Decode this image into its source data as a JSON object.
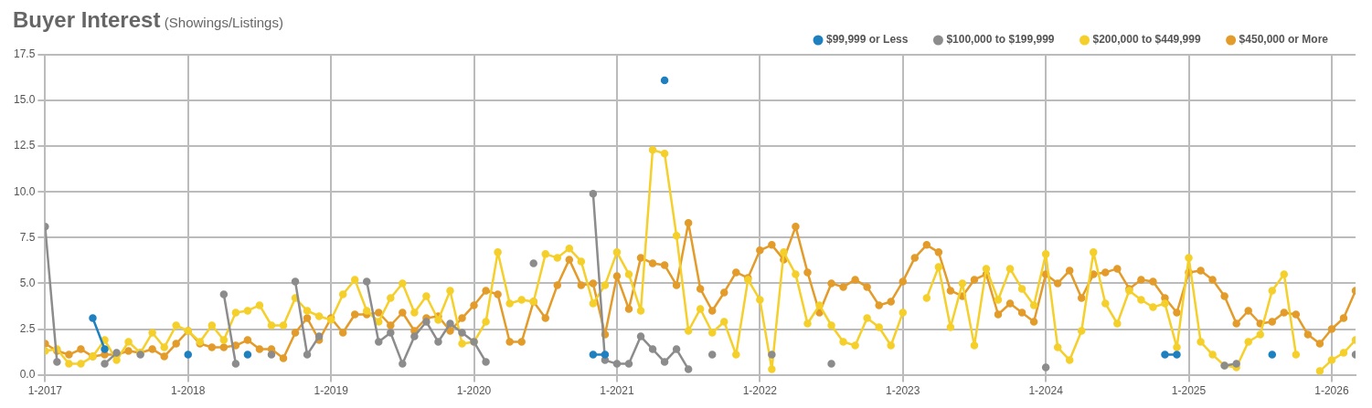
{
  "chart_data": {
    "type": "line",
    "title": "Buyer Interest",
    "subtitle": "(Showings/Listings)",
    "x": [
      "2017-01",
      "2017-02",
      "2017-03",
      "2017-04",
      "2017-05",
      "2017-06",
      "2017-07",
      "2017-08",
      "2017-09",
      "2017-10",
      "2017-11",
      "2017-12",
      "2018-01",
      "2018-02",
      "2018-03",
      "2018-04",
      "2018-05",
      "2018-06",
      "2018-07",
      "2018-08",
      "2018-09",
      "2018-10",
      "2018-11",
      "2018-12",
      "2019-01",
      "2019-02",
      "2019-03",
      "2019-04",
      "2019-05",
      "2019-06",
      "2019-07",
      "2019-08",
      "2019-09",
      "2019-10",
      "2019-11",
      "2019-12",
      "2020-01",
      "2020-02",
      "2020-03",
      "2020-04",
      "2020-05",
      "2020-06",
      "2020-07",
      "2020-08",
      "2020-09",
      "2020-10",
      "2020-11",
      "2020-12",
      "2021-01",
      "2021-02",
      "2021-03",
      "2021-04",
      "2021-05",
      "2021-06",
      "2021-07",
      "2021-08",
      "2021-09",
      "2021-10",
      "2021-11",
      "2021-12",
      "2022-01",
      "2022-02",
      "2022-03",
      "2022-04",
      "2022-05",
      "2022-06",
      "2022-07",
      "2022-08",
      "2022-09",
      "2022-10",
      "2022-11",
      "2022-12",
      "2023-01",
      "2023-02",
      "2023-03",
      "2023-04",
      "2023-05",
      "2023-06",
      "2023-07",
      "2023-08",
      "2023-09",
      "2023-10",
      "2023-11",
      "2023-12",
      "2024-01",
      "2024-02",
      "2024-03",
      "2024-04",
      "2024-05",
      "2024-06",
      "2024-07",
      "2024-08",
      "2024-09",
      "2024-10",
      "2024-11",
      "2024-12",
      "2025-01",
      "2025-02",
      "2025-03",
      "2025-04",
      "2025-05",
      "2025-06",
      "2025-07",
      "2025-08",
      "2025-09",
      "2025-10",
      "2025-11",
      "2025-12",
      "2026-01",
      "2026-02",
      "2026-03"
    ],
    "series": [
      {
        "name": "$99,999 or Less",
        "color": "#1f80c0",
        "values": [
          null,
          null,
          null,
          null,
          3.1,
          1.4,
          null,
          null,
          null,
          null,
          null,
          null,
          1.1,
          null,
          null,
          null,
          null,
          1.1,
          null,
          null,
          null,
          null,
          null,
          null,
          null,
          null,
          null,
          null,
          null,
          null,
          null,
          null,
          null,
          null,
          null,
          null,
          null,
          null,
          null,
          null,
          null,
          null,
          null,
          null,
          null,
          null,
          1.1,
          1.1,
          null,
          null,
          null,
          null,
          16.1,
          null,
          null,
          null,
          null,
          null,
          null,
          null,
          null,
          null,
          null,
          null,
          null,
          null,
          null,
          null,
          null,
          null,
          null,
          null,
          null,
          null,
          null,
          null,
          null,
          null,
          null,
          null,
          null,
          null,
          null,
          null,
          null,
          null,
          null,
          null,
          null,
          null,
          null,
          null,
          null,
          null,
          1.1,
          1.1,
          null,
          null,
          null,
          null,
          null,
          null,
          null,
          1.1,
          null,
          null,
          null,
          null,
          null,
          null,
          null
        ]
      },
      {
        "name": "$100,000 to $199,999",
        "color": "#8c8c8c",
        "values": [
          8.1,
          0.7,
          null,
          null,
          null,
          0.6,
          1.2,
          null,
          1.1,
          null,
          null,
          null,
          null,
          null,
          null,
          4.4,
          0.6,
          null,
          null,
          1.1,
          null,
          5.1,
          1.1,
          2.1,
          null,
          null,
          null,
          5.1,
          1.8,
          2.3,
          0.6,
          2.1,
          2.9,
          1.8,
          2.8,
          2.3,
          1.8,
          0.7,
          null,
          null,
          null,
          6.1,
          null,
          null,
          null,
          null,
          9.9,
          0.8,
          0.6,
          0.6,
          2.1,
          1.4,
          0.7,
          1.4,
          0.3,
          null,
          1.1,
          null,
          null,
          null,
          null,
          1.1,
          null,
          null,
          null,
          null,
          0.6,
          null,
          null,
          null,
          null,
          null,
          null,
          null,
          null,
          null,
          null,
          null,
          null,
          null,
          null,
          null,
          null,
          null,
          0.4,
          null,
          null,
          null,
          null,
          null,
          null,
          null,
          null,
          null,
          null,
          null,
          null,
          null,
          null,
          0.5,
          0.6,
          null,
          null,
          null,
          null,
          null,
          null,
          null,
          null,
          null,
          1.1
        ]
      },
      {
        "name": "$200,000 to $449,999",
        "color": "#f5cf2a",
        "values": [
          1.3,
          1.4,
          0.6,
          0.6,
          1.0,
          1.9,
          0.8,
          1.8,
          1.2,
          2.3,
          1.5,
          2.7,
          2.4,
          1.8,
          2.7,
          1.9,
          3.4,
          3.5,
          3.8,
          2.7,
          2.7,
          4.2,
          3.5,
          3.2,
          3.0,
          4.4,
          5.2,
          3.5,
          2.9,
          4.2,
          5.0,
          3.4,
          4.3,
          3.0,
          4.6,
          1.7,
          1.8,
          2.9,
          6.7,
          3.9,
          4.1,
          4.0,
          6.6,
          6.4,
          6.9,
          6.2,
          3.9,
          4.9,
          6.7,
          5.5,
          3.5,
          12.3,
          12.1,
          7.6,
          2.4,
          3.6,
          2.3,
          2.9,
          1.1,
          5.2,
          4.1,
          0.3,
          6.7,
          5.5,
          2.8,
          3.8,
          2.7,
          1.8,
          1.6,
          3.1,
          2.6,
          1.6,
          3.4,
          null,
          4.2,
          5.9,
          2.6,
          5.0,
          1.6,
          5.8,
          4.1,
          5.8,
          4.7,
          3.8,
          6.6,
          1.5,
          0.8,
          2.4,
          6.7,
          3.9,
          2.8,
          4.6,
          4.1,
          3.7,
          3.9,
          1.5,
          6.4,
          1.8,
          1.1,
          0.5,
          0.4,
          1.8,
          2.2,
          4.6,
          5.5,
          1.1,
          null,
          0.2,
          0.8,
          1.2,
          1.9
        ]
      },
      {
        "name": "$450,000 or More",
        "color": "#e39b2a",
        "values": [
          1.7,
          1.3,
          1.1,
          1.4,
          1.0,
          1.1,
          1.1,
          1.3,
          1.2,
          1.4,
          1.0,
          1.7,
          2.4,
          1.7,
          1.5,
          1.5,
          1.6,
          1.9,
          1.4,
          1.4,
          0.9,
          2.3,
          3.1,
          1.9,
          3.1,
          2.3,
          3.3,
          3.3,
          3.4,
          2.7,
          3.4,
          2.4,
          3.1,
          3.2,
          2.4,
          3.1,
          3.8,
          4.6,
          4.4,
          1.8,
          1.8,
          4.0,
          3.1,
          4.9,
          6.3,
          4.9,
          5.0,
          2.2,
          5.4,
          3.6,
          6.4,
          6.1,
          6.0,
          4.9,
          8.3,
          4.7,
          3.5,
          4.5,
          5.6,
          5.3,
          6.8,
          7.1,
          6.3,
          8.1,
          5.6,
          3.4,
          5.0,
          4.8,
          5.2,
          4.8,
          3.8,
          4.0,
          5.1,
          6.4,
          7.1,
          6.7,
          4.6,
          4.3,
          5.2,
          5.5,
          3.3,
          3.9,
          3.4,
          2.9,
          5.5,
          5.0,
          5.7,
          4.2,
          5.5,
          5.6,
          5.8,
          4.7,
          5.2,
          5.1,
          4.2,
          3.4,
          5.6,
          5.7,
          5.2,
          4.3,
          2.8,
          3.5,
          2.8,
          2.9,
          3.4,
          3.3,
          2.2,
          1.7,
          2.5,
          3.1,
          4.6
        ]
      }
    ],
    "xlim": [
      "2017-01",
      "2026-03"
    ],
    "xticks": [
      {
        "value": "2017-01",
        "label": "1-2017"
      },
      {
        "value": "2018-01",
        "label": "1-2018"
      },
      {
        "value": "2019-01",
        "label": "1-2019"
      },
      {
        "value": "2020-01",
        "label": "1-2020"
      },
      {
        "value": "2021-01",
        "label": "1-2021"
      },
      {
        "value": "2022-01",
        "label": "1-2022"
      },
      {
        "value": "2023-01",
        "label": "1-2023"
      },
      {
        "value": "2024-01",
        "label": "1-2024"
      },
      {
        "value": "2025-01",
        "label": "1-2025"
      },
      {
        "value": "2026-01",
        "label": "1-2026"
      }
    ],
    "ylim": [
      0,
      17.5
    ],
    "yticks": [
      {
        "value": 0,
        "label": "0.0"
      },
      {
        "value": 2.5,
        "label": "2.5"
      },
      {
        "value": 5,
        "label": "5.0"
      },
      {
        "value": 7.5,
        "label": "7.5"
      },
      {
        "value": 10,
        "label": "10.0"
      },
      {
        "value": 12.5,
        "label": "12.5"
      },
      {
        "value": 15,
        "label": "15.0"
      },
      {
        "value": 17.5,
        "label": "17.5"
      }
    ],
    "grid": true,
    "legend": "top right",
    "marker": "circle"
  }
}
